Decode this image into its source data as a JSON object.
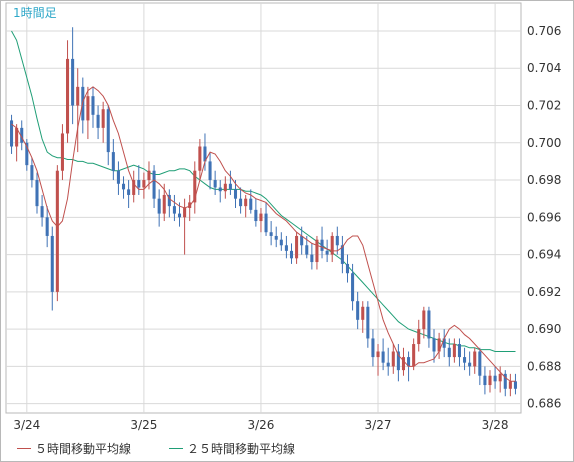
{
  "chart_data": {
    "type": "candlestick",
    "timeframe_label": "1時間足",
    "x_tick_labels": [
      "3/24",
      "3/25",
      "3/26",
      "3/27",
      "3/28"
    ],
    "ylim": [
      0.6855,
      0.7075
    ],
    "y_ticks": [
      "0.706",
      "0.704",
      "0.702",
      "0.700",
      "0.698",
      "0.696",
      "0.694",
      "0.692",
      "0.690",
      "0.688",
      "0.686"
    ],
    "grid": true,
    "colors": {
      "up": "#c0504d",
      "down": "#3f72b5",
      "ma5": "#c0504d",
      "ma25": "#1f9e76",
      "grid": "#d9d9d9"
    },
    "legend": [
      {
        "name": "５時間移動平均線",
        "color": "#c0504d"
      },
      {
        "name": "２５時間移動平均線",
        "color": "#1f9e76"
      }
    ],
    "ma5": [
      0.701,
      0.7008,
      0.7003,
      0.6998,
      0.6992,
      0.6985,
      0.6975,
      0.6965,
      0.6958,
      0.6955,
      0.6958,
      0.697,
      0.699,
      0.7008,
      0.7022,
      0.7028,
      0.703,
      0.7028,
      0.7025,
      0.702,
      0.7012,
      0.7005,
      0.6995,
      0.6985,
      0.6978,
      0.6975,
      0.6975,
      0.6978,
      0.698,
      0.6978,
      0.6975,
      0.697,
      0.6968,
      0.6966,
      0.6965,
      0.6966,
      0.697,
      0.698,
      0.699,
      0.6995,
      0.6994,
      0.699,
      0.6985,
      0.6982,
      0.6978,
      0.6975,
      0.6973,
      0.6972,
      0.697,
      0.6969,
      0.6968,
      0.6965,
      0.6962,
      0.696,
      0.6958,
      0.6955,
      0.6952,
      0.695,
      0.6948,
      0.6946,
      0.6945,
      0.6944,
      0.6943,
      0.6942,
      0.6942,
      0.6944,
      0.6948,
      0.695,
      0.695,
      0.6945,
      0.6935,
      0.6925,
      0.6915,
      0.6905,
      0.6898,
      0.6892,
      0.6886,
      0.6883,
      0.688,
      0.688,
      0.6882,
      0.6882,
      0.6883,
      0.6884,
      0.6888,
      0.6895,
      0.69,
      0.6902,
      0.69,
      0.6897,
      0.6895,
      0.6892,
      0.6889,
      0.6886,
      0.6883,
      0.688,
      0.6877,
      0.6874,
      0.6872,
      0.6872
    ],
    "ma25": [
      0.706,
      0.7055,
      0.7045,
      0.7035,
      0.7025,
      0.7013,
      0.7002,
      0.6995,
      0.6993,
      0.6992,
      0.6992,
      0.6991,
      0.6991,
      0.699,
      0.699,
      0.6989,
      0.6989,
      0.6988,
      0.6987,
      0.6986,
      0.6985,
      0.6985,
      0.6986,
      0.6987,
      0.6988,
      0.6987,
      0.6986,
      0.6984,
      0.6983,
      0.6983,
      0.6984,
      0.6985,
      0.6985,
      0.6986,
      0.6986,
      0.6985,
      0.6982,
      0.698,
      0.6978,
      0.6976,
      0.6975,
      0.6975,
      0.6975,
      0.6975,
      0.6975,
      0.6975,
      0.6974,
      0.6974,
      0.6973,
      0.6972,
      0.697,
      0.6967,
      0.6964,
      0.6961,
      0.6959,
      0.6957,
      0.6955,
      0.6953,
      0.6951,
      0.6949,
      0.6947,
      0.6945,
      0.6943,
      0.6941,
      0.6939,
      0.6937,
      0.6934,
      0.6931,
      0.6928,
      0.6925,
      0.6922,
      0.6919,
      0.6916,
      0.6913,
      0.691,
      0.6907,
      0.6904,
      0.6902,
      0.69,
      0.6899,
      0.6898,
      0.6897,
      0.6896,
      0.6895,
      0.6894,
      0.6893,
      0.6892,
      0.6892,
      0.6891,
      0.6891,
      0.689,
      0.689,
      0.6889,
      0.6889,
      0.6889,
      0.6888,
      0.6888,
      0.6888,
      0.6888,
      0.6888
    ],
    "candles": [
      [
        0.7012,
        0.7015,
        0.6994,
        0.6998
      ],
      [
        0.6998,
        0.701,
        0.699,
        0.7008
      ],
      [
        0.7008,
        0.7012,
        0.6996,
        0.7
      ],
      [
        0.7,
        0.7002,
        0.6985,
        0.6988
      ],
      [
        0.6988,
        0.6992,
        0.6976,
        0.698
      ],
      [
        0.698,
        0.6984,
        0.6962,
        0.6966
      ],
      [
        0.6966,
        0.6972,
        0.6955,
        0.696
      ],
      [
        0.696,
        0.6966,
        0.6944,
        0.695
      ],
      [
        0.695,
        0.6955,
        0.691,
        0.692
      ],
      [
        0.692,
        0.6988,
        0.6915,
        0.6985
      ],
      [
        0.6985,
        0.701,
        0.698,
        0.7005
      ],
      [
        0.7005,
        0.7055,
        0.7,
        0.7045
      ],
      [
        0.7045,
        0.7062,
        0.701,
        0.702
      ],
      [
        0.702,
        0.704,
        0.6995,
        0.703
      ],
      [
        0.703,
        0.7035,
        0.7005,
        0.7012
      ],
      [
        0.7012,
        0.703,
        0.7002,
        0.7025
      ],
      [
        0.7025,
        0.703,
        0.7008,
        0.7015
      ],
      [
        0.7015,
        0.702,
        0.7002,
        0.7008
      ],
      [
        0.7008,
        0.7022,
        0.7,
        0.7018
      ],
      [
        0.7018,
        0.702,
        0.6988,
        0.6995
      ],
      [
        0.6995,
        0.7002,
        0.698,
        0.6985
      ],
      [
        0.6985,
        0.699,
        0.6972,
        0.6978
      ],
      [
        0.6978,
        0.6982,
        0.697,
        0.6975
      ],
      [
        0.6975,
        0.698,
        0.6965,
        0.6972
      ],
      [
        0.6972,
        0.6985,
        0.6968,
        0.698
      ],
      [
        0.698,
        0.6988,
        0.6972,
        0.6976
      ],
      [
        0.6976,
        0.6984,
        0.697,
        0.698
      ],
      [
        0.698,
        0.699,
        0.6975,
        0.6985
      ],
      [
        0.6985,
        0.6988,
        0.6965,
        0.697
      ],
      [
        0.697,
        0.6975,
        0.6955,
        0.6962
      ],
      [
        0.6962,
        0.6978,
        0.6958,
        0.6972
      ],
      [
        0.6972,
        0.6975,
        0.696,
        0.6966
      ],
      [
        0.6966,
        0.6972,
        0.6958,
        0.6962
      ],
      [
        0.6962,
        0.6968,
        0.6955,
        0.696
      ],
      [
        0.696,
        0.697,
        0.694,
        0.6965
      ],
      [
        0.6965,
        0.6972,
        0.6958,
        0.6968
      ],
      [
        0.6968,
        0.699,
        0.6962,
        0.6985
      ],
      [
        0.6985,
        0.7002,
        0.698,
        0.6998
      ],
      [
        0.6998,
        0.7005,
        0.6985,
        0.699
      ],
      [
        0.699,
        0.6995,
        0.6975,
        0.698
      ],
      [
        0.698,
        0.6985,
        0.6972,
        0.6976
      ],
      [
        0.6976,
        0.698,
        0.6968,
        0.6974
      ],
      [
        0.6974,
        0.6982,
        0.697,
        0.6978
      ],
      [
        0.6978,
        0.6985,
        0.6972,
        0.6975
      ],
      [
        0.6975,
        0.698,
        0.6965,
        0.697
      ],
      [
        0.697,
        0.6976,
        0.6962,
        0.6966
      ],
      [
        0.6966,
        0.6972,
        0.696,
        0.697
      ],
      [
        0.697,
        0.6975,
        0.6962,
        0.6964
      ],
      [
        0.6964,
        0.697,
        0.6955,
        0.6958
      ],
      [
        0.6958,
        0.6965,
        0.6952,
        0.6962
      ],
      [
        0.6962,
        0.6968,
        0.695,
        0.6952
      ],
      [
        0.6952,
        0.6958,
        0.6945,
        0.695
      ],
      [
        0.695,
        0.6955,
        0.6944,
        0.6948
      ],
      [
        0.6948,
        0.6952,
        0.6942,
        0.6945
      ],
      [
        0.6945,
        0.695,
        0.6938,
        0.6942
      ],
      [
        0.6942,
        0.6946,
        0.6935,
        0.6938
      ],
      [
        0.6938,
        0.6952,
        0.6935,
        0.695
      ],
      [
        0.695,
        0.6955,
        0.694,
        0.6945
      ],
      [
        0.6945,
        0.695,
        0.6938,
        0.694
      ],
      [
        0.694,
        0.6946,
        0.6932,
        0.6936
      ],
      [
        0.6936,
        0.695,
        0.6932,
        0.6948
      ],
      [
        0.6948,
        0.6955,
        0.6938,
        0.6942
      ],
      [
        0.6942,
        0.6948,
        0.6936,
        0.694
      ],
      [
        0.694,
        0.6952,
        0.6936,
        0.695
      ],
      [
        0.695,
        0.6955,
        0.694,
        0.6945
      ],
      [
        0.6945,
        0.695,
        0.693,
        0.6935
      ],
      [
        0.6935,
        0.694,
        0.6925,
        0.693
      ],
      [
        0.693,
        0.6935,
        0.691,
        0.6915
      ],
      [
        0.6915,
        0.692,
        0.69,
        0.6905
      ],
      [
        0.6905,
        0.6915,
        0.6898,
        0.6912
      ],
      [
        0.6912,
        0.6915,
        0.689,
        0.6895
      ],
      [
        0.6895,
        0.69,
        0.688,
        0.6885
      ],
      [
        0.6885,
        0.6892,
        0.6875,
        0.6888
      ],
      [
        0.6888,
        0.6895,
        0.6878,
        0.6882
      ],
      [
        0.6882,
        0.689,
        0.6875,
        0.688
      ],
      [
        0.688,
        0.6892,
        0.6876,
        0.6888
      ],
      [
        0.6888,
        0.6892,
        0.6872,
        0.6878
      ],
      [
        0.6878,
        0.689,
        0.6875,
        0.6885
      ],
      [
        0.6885,
        0.6888,
        0.6872,
        0.688
      ],
      [
        0.688,
        0.6895,
        0.6878,
        0.6892
      ],
      [
        0.6892,
        0.6905,
        0.6888,
        0.69
      ],
      [
        0.69,
        0.6912,
        0.6895,
        0.691
      ],
      [
        0.691,
        0.6912,
        0.689,
        0.6895
      ],
      [
        0.6895,
        0.69,
        0.6882,
        0.6888
      ],
      [
        0.6888,
        0.6898,
        0.6884,
        0.6895
      ],
      [
        0.6895,
        0.69,
        0.6885,
        0.689
      ],
      [
        0.689,
        0.6895,
        0.688,
        0.6885
      ],
      [
        0.6885,
        0.6895,
        0.6882,
        0.6892
      ],
      [
        0.6892,
        0.6895,
        0.688,
        0.6885
      ],
      [
        0.6885,
        0.689,
        0.6878,
        0.6882
      ],
      [
        0.6882,
        0.6888,
        0.6875,
        0.688
      ],
      [
        0.688,
        0.689,
        0.6876,
        0.6888
      ],
      [
        0.6888,
        0.689,
        0.687,
        0.6875
      ],
      [
        0.6875,
        0.688,
        0.6865,
        0.687
      ],
      [
        0.687,
        0.6878,
        0.6866,
        0.6875
      ],
      [
        0.6875,
        0.688,
        0.6868,
        0.6872
      ],
      [
        0.6872,
        0.688,
        0.6866,
        0.6876
      ],
      [
        0.6876,
        0.6878,
        0.6864,
        0.6868
      ],
      [
        0.6868,
        0.6876,
        0.6864,
        0.6872
      ],
      [
        0.6872,
        0.6876,
        0.6865,
        0.6868
      ]
    ]
  }
}
